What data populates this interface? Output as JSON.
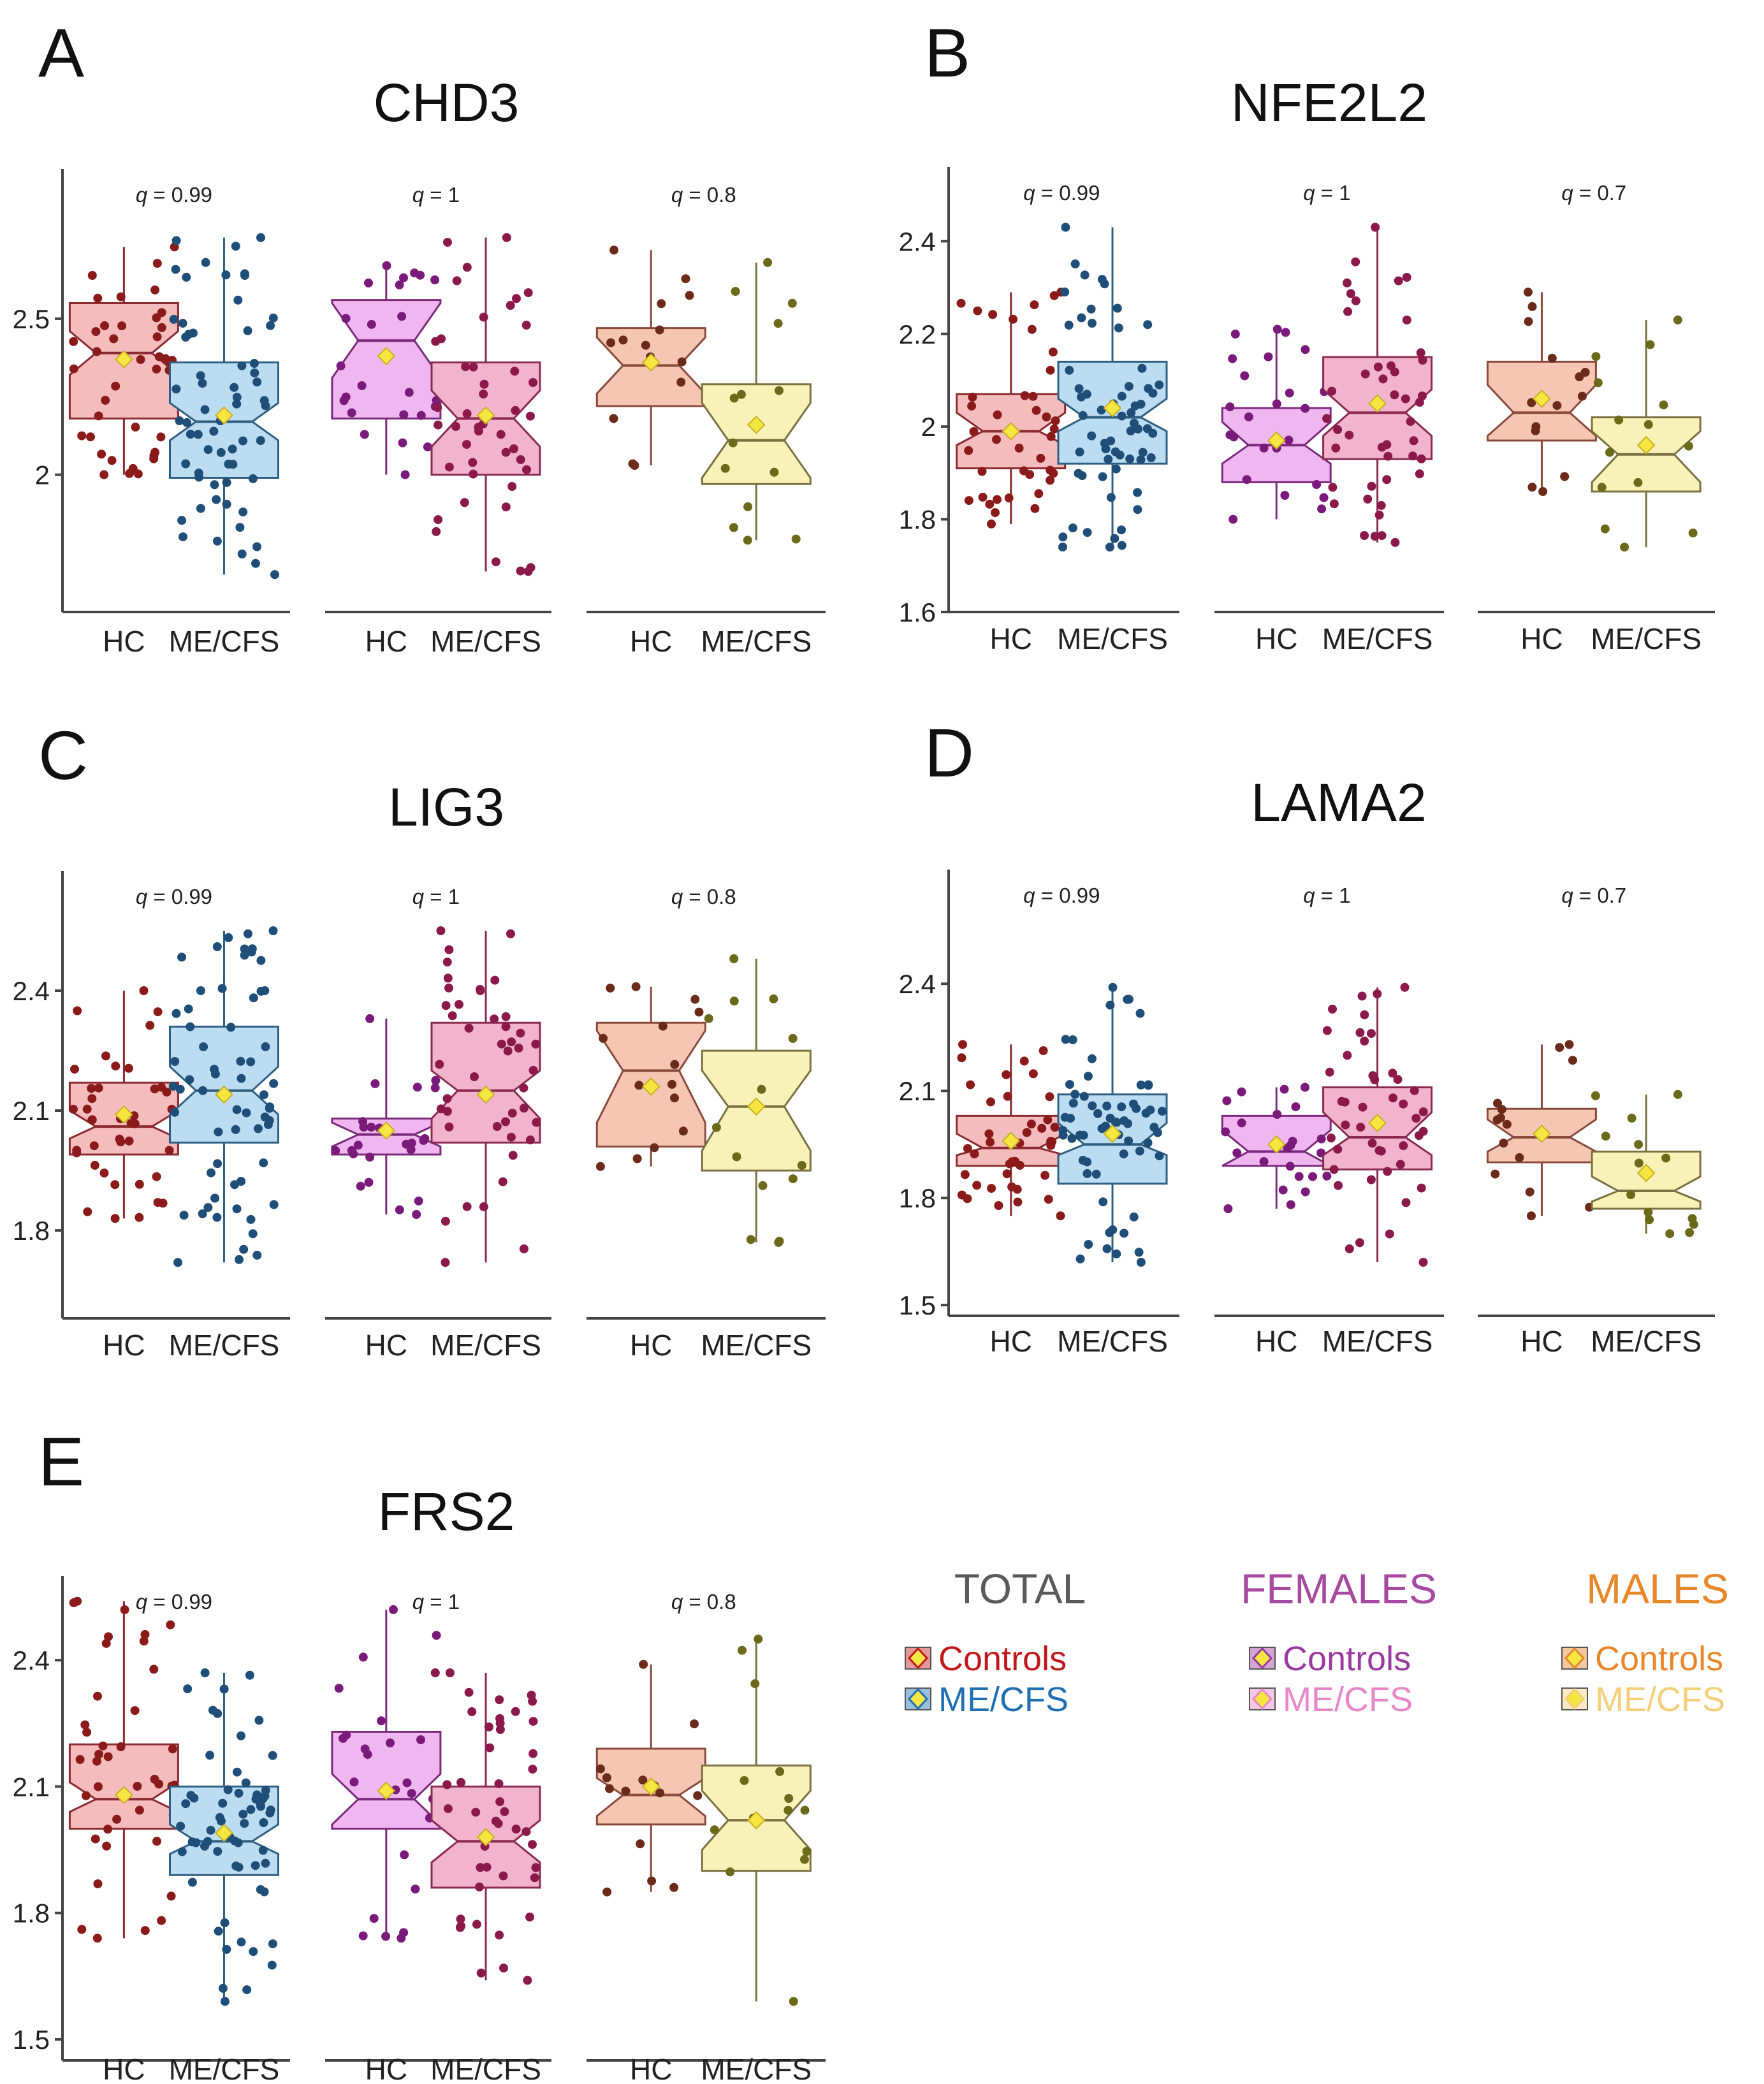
{
  "figure": {
    "categories": [
      "HC",
      "ME/CFS"
    ],
    "colors": {
      "total_hc_fill": "#f4bcbc",
      "total_hc_stroke": "#8b2a30",
      "total_hc_points": "#8b1a1a",
      "total_me_fill": "#bcdcf2",
      "total_me_stroke": "#2f5f80",
      "total_me_points": "#1f4e79",
      "fem_hc_fill": "#f0b6f0",
      "fem_hc_stroke": "#7a2a7a",
      "fem_hc_points": "#7a1a7a",
      "fem_me_fill": "#f2b4cc",
      "fem_me_stroke": "#8a2a50",
      "fem_me_points": "#8b1a4a",
      "male_hc_fill": "#f6c6b4",
      "male_hc_stroke": "#8a4a3a",
      "male_hc_points": "#6b2a1a",
      "male_me_fill": "#f8f2b8",
      "male_me_stroke": "#7a7040",
      "male_me_points": "#6a6a1a",
      "mean_marker": "#f5e642"
    }
  },
  "legend": {
    "groups": [
      {
        "title": "TOTAL",
        "title_color": "#5a5a5a",
        "entries": [
          {
            "label": "Controls",
            "color": "#c0181a"
          },
          {
            "label": "ME/CFS",
            "color": "#1f6fb2"
          }
        ]
      },
      {
        "title": "FEMALES",
        "title_color": "#a64aa0",
        "entries": [
          {
            "label": "Controls",
            "color": "#9a3aa0"
          },
          {
            "label": "ME/CFS",
            "color": "#e887c8"
          }
        ]
      },
      {
        "title": "MALES",
        "title_color": "#e8862a",
        "entries": [
          {
            "label": "Controls",
            "color": "#e8862a"
          },
          {
            "label": "ME/CFS",
            "color": "#f4cf7a"
          }
        ]
      }
    ]
  },
  "chart_data": [
    {
      "type": "boxplot",
      "letter": "A",
      "title": "CHD3",
      "yticks": [
        2,
        2.5
      ],
      "ytick_labels": [
        "2",
        "2.5"
      ],
      "ylim": [
        1.56,
        2.98
      ],
      "groups": [
        {
          "name": "TOTAL",
          "q": "0.99",
          "boxes": [
            {
              "category": "HC",
              "min": 2.0,
              "q1": 2.18,
              "median": 2.39,
              "q3": 2.55,
              "max": 2.73,
              "mean": 2.37,
              "notch": [
                2.32,
                2.46
              ]
            },
            {
              "category": "ME/CFS",
              "min": 1.68,
              "q1": 1.99,
              "median": 2.17,
              "q3": 2.36,
              "max": 2.76,
              "mean": 2.19,
              "notch": [
                2.11,
                2.23
              ]
            }
          ]
        },
        {
          "name": "FEMALES",
          "q": "1",
          "boxes": [
            {
              "category": "HC",
              "min": 2.0,
              "q1": 2.18,
              "median": 2.43,
              "q3": 2.56,
              "max": 2.67,
              "mean": 2.38,
              "notch": [
                2.31,
                2.55
              ]
            },
            {
              "category": "ME/CFS",
              "min": 1.69,
              "q1": 2.0,
              "median": 2.18,
              "q3": 2.36,
              "max": 2.76,
              "mean": 2.19,
              "notch": [
                2.09,
                2.27
              ]
            }
          ]
        },
        {
          "name": "MALES",
          "q": "0.8",
          "boxes": [
            {
              "category": "HC",
              "min": 2.03,
              "q1": 2.22,
              "median": 2.35,
              "q3": 2.47,
              "max": 2.72,
              "mean": 2.36,
              "notch": [
                2.26,
                2.44
              ]
            },
            {
              "category": "ME/CFS",
              "min": 1.79,
              "q1": 1.97,
              "median": 2.11,
              "q3": 2.29,
              "max": 2.68,
              "mean": 2.16,
              "notch": [
                1.99,
                2.23
              ]
            }
          ]
        }
      ]
    },
    {
      "type": "boxplot",
      "letter": "B",
      "title": "NFE2L2",
      "yticks": [
        1.6,
        1.8,
        2,
        2.2,
        2.4
      ],
      "ytick_labels": [
        "1.6",
        "1.8",
        "2",
        "2.2",
        "2.4"
      ],
      "ylim": [
        1.6,
        2.56
      ],
      "groups": [
        {
          "name": "TOTAL",
          "q": "0.99",
          "boxes": [
            {
              "category": "HC",
              "min": 1.79,
              "q1": 1.91,
              "median": 1.99,
              "q3": 2.07,
              "max": 2.29,
              "mean": 1.99,
              "notch": [
                1.96,
                2.03
              ]
            },
            {
              "category": "ME/CFS",
              "min": 1.74,
              "q1": 1.92,
              "median": 2.02,
              "q3": 2.14,
              "max": 2.43,
              "mean": 2.04,
              "notch": [
                1.99,
                2.06
              ]
            }
          ]
        },
        {
          "name": "FEMALES",
          "q": "1",
          "boxes": [
            {
              "category": "HC",
              "min": 1.8,
              "q1": 1.88,
              "median": 1.96,
              "q3": 2.04,
              "max": 2.21,
              "mean": 1.97,
              "notch": [
                1.92,
                2.01
              ]
            },
            {
              "category": "ME/CFS",
              "min": 1.75,
              "q1": 1.93,
              "median": 2.03,
              "q3": 2.15,
              "max": 2.43,
              "mean": 2.05,
              "notch": [
                1.98,
                2.08
              ]
            }
          ]
        },
        {
          "name": "MALES",
          "q": "0.7",
          "boxes": [
            {
              "category": "HC",
              "min": 1.86,
              "q1": 1.97,
              "median": 2.03,
              "q3": 2.14,
              "max": 2.29,
              "mean": 2.06,
              "notch": [
                1.98,
                2.09
              ]
            },
            {
              "category": "ME/CFS",
              "min": 1.74,
              "q1": 1.86,
              "median": 1.94,
              "q3": 2.02,
              "max": 2.23,
              "mean": 1.96,
              "notch": [
                1.88,
                1.99
              ]
            }
          ]
        }
      ]
    },
    {
      "type": "boxplot",
      "letter": "C",
      "title": "LIG3",
      "yticks": [
        1.8,
        2.1,
        2.4
      ],
      "ytick_labels": [
        "1.8",
        "2.1",
        "2.4"
      ],
      "ylim": [
        1.58,
        2.7
      ],
      "groups": [
        {
          "name": "TOTAL",
          "q": "0.99",
          "boxes": [
            {
              "category": "HC",
              "min": 1.83,
              "q1": 1.99,
              "median": 2.06,
              "q3": 2.17,
              "max": 2.4,
              "mean": 2.09,
              "notch": [
                2.03,
                2.1
              ]
            },
            {
              "category": "ME/CFS",
              "min": 1.72,
              "q1": 2.02,
              "median": 2.15,
              "q3": 2.31,
              "max": 2.55,
              "mean": 2.14,
              "notch": [
                2.09,
                2.21
              ]
            }
          ]
        },
        {
          "name": "FEMALES",
          "q": "1",
          "boxes": [
            {
              "category": "HC",
              "min": 1.84,
              "q1": 1.99,
              "median": 2.04,
              "q3": 2.08,
              "max": 2.33,
              "mean": 2.05,
              "notch": [
                2.01,
                2.07
              ]
            },
            {
              "category": "ME/CFS",
              "min": 1.72,
              "q1": 2.02,
              "median": 2.15,
              "q3": 2.32,
              "max": 2.55,
              "mean": 2.14,
              "notch": [
                2.08,
                2.2
              ]
            }
          ]
        },
        {
          "name": "MALES",
          "q": "0.8",
          "boxes": [
            {
              "category": "HC",
              "min": 1.96,
              "q1": 2.01,
              "median": 2.2,
              "q3": 2.32,
              "max": 2.41,
              "mean": 2.16,
              "notch": [
                2.07,
                2.3
              ]
            },
            {
              "category": "ME/CFS",
              "min": 1.77,
              "q1": 1.95,
              "median": 2.11,
              "q3": 2.25,
              "max": 2.48,
              "mean": 2.11,
              "notch": [
                2.0,
                2.2
              ]
            }
          ]
        }
      ]
    },
    {
      "type": "boxplot",
      "letter": "D",
      "title": "LAMA2",
      "yticks": [
        1.5,
        1.8,
        2.1,
        2.4
      ],
      "ytick_labels": [
        "1.5",
        "1.8",
        "2.1",
        "2.4"
      ],
      "ylim": [
        1.47,
        2.72
      ],
      "groups": [
        {
          "name": "TOTAL",
          "q": "0.99",
          "boxes": [
            {
              "category": "HC",
              "min": 1.75,
              "q1": 1.89,
              "median": 1.94,
              "q3": 2.03,
              "max": 2.23,
              "mean": 1.96,
              "notch": [
                1.92,
                1.98
              ]
            },
            {
              "category": "ME/CFS",
              "min": 1.62,
              "q1": 1.84,
              "median": 1.95,
              "q3": 2.09,
              "max": 2.39,
              "mean": 1.98,
              "notch": [
                1.92,
                2.01
              ]
            }
          ]
        },
        {
          "name": "FEMALES",
          "q": "1",
          "boxes": [
            {
              "category": "HC",
              "min": 1.77,
              "q1": 1.89,
              "median": 1.93,
              "q3": 2.03,
              "max": 2.11,
              "mean": 1.95,
              "notch": [
                1.89,
                1.99
              ]
            },
            {
              "category": "ME/CFS",
              "min": 1.62,
              "q1": 1.88,
              "median": 1.97,
              "q3": 2.11,
              "max": 2.39,
              "mean": 2.01,
              "notch": [
                1.92,
                2.04
              ]
            }
          ]
        },
        {
          "name": "MALES",
          "q": "0.7",
          "boxes": [
            {
              "category": "HC",
              "min": 1.75,
              "q1": 1.9,
              "median": 1.97,
              "q3": 2.05,
              "max": 2.23,
              "mean": 1.98,
              "notch": [
                1.93,
                2.02
              ]
            },
            {
              "category": "ME/CFS",
              "min": 1.7,
              "q1": 1.77,
              "median": 1.82,
              "q3": 1.93,
              "max": 2.09,
              "mean": 1.87,
              "notch": [
                1.79,
                1.86
              ]
            }
          ]
        }
      ]
    },
    {
      "type": "boxplot",
      "letter": "E",
      "title": "FRS2",
      "yticks": [
        1.5,
        1.8,
        2.1,
        2.4
      ],
      "ytick_labels": [
        "1.5",
        "1.8",
        "2.1",
        "2.4"
      ],
      "ylim": [
        1.45,
        2.6
      ],
      "groups": [
        {
          "name": "TOTAL",
          "q": "0.99",
          "boxes": [
            {
              "category": "HC",
              "min": 1.74,
              "q1": 2.0,
              "median": 2.07,
              "q3": 2.2,
              "max": 2.54,
              "mean": 2.08,
              "notch": [
                2.04,
                2.11
              ]
            },
            {
              "category": "ME/CFS",
              "min": 1.59,
              "q1": 1.89,
              "median": 1.97,
              "q3": 2.1,
              "max": 2.37,
              "mean": 1.99,
              "notch": [
                1.94,
                2.01
              ]
            }
          ]
        },
        {
          "name": "FEMALES",
          "q": "1",
          "boxes": [
            {
              "category": "HC",
              "min": 1.74,
              "q1": 2.0,
              "median": 2.07,
              "q3": 2.23,
              "max": 2.52,
              "mean": 2.09,
              "notch": [
                2.01,
                2.13
              ]
            },
            {
              "category": "ME/CFS",
              "min": 1.64,
              "q1": 1.86,
              "median": 1.97,
              "q3": 2.1,
              "max": 2.37,
              "mean": 1.98,
              "notch": [
                1.92,
                2.02
              ]
            }
          ]
        },
        {
          "name": "MALES",
          "q": "0.8",
          "boxes": [
            {
              "category": "HC",
              "min": 1.85,
              "q1": 2.01,
              "median": 2.08,
              "q3": 2.19,
              "max": 2.39,
              "mean": 2.1,
              "notch": [
                2.03,
                2.12
              ]
            },
            {
              "category": "ME/CFS",
              "min": 1.59,
              "q1": 1.9,
              "median": 2.02,
              "q3": 2.15,
              "max": 2.45,
              "mean": 2.02,
              "notch": [
                1.95,
                2.09
              ]
            }
          ]
        }
      ]
    }
  ]
}
